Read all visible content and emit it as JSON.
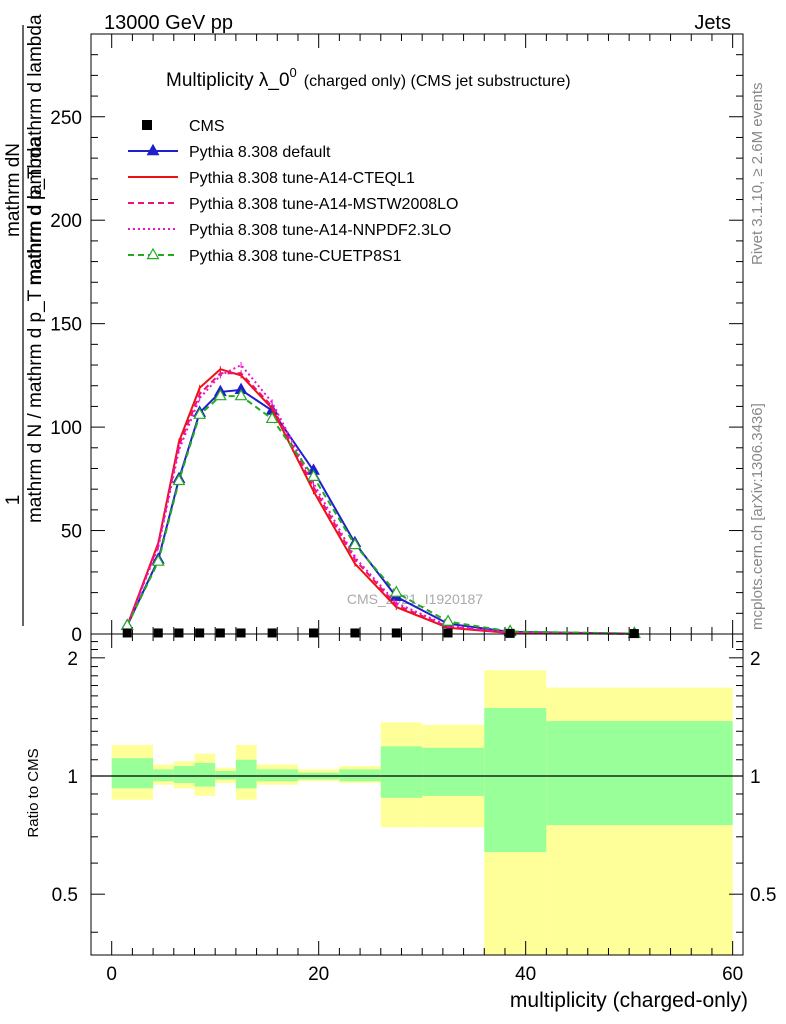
{
  "header": {
    "left": "13000 GeV pp",
    "right": "Jets"
  },
  "side": {
    "rivet": "Rivet 3.1.10, ≥ 2.6M events",
    "mcplots": "mcplots.cern.ch [arXiv:1306.3436]"
  },
  "chart_data": [
    {
      "type": "line",
      "title": "Multiplicity λ_0",
      "title_superscript": "0",
      "subtitle": "(charged only) (CMS jet substructure)",
      "watermark": "CMS_2021_I1920187",
      "ylabel_numerator": "mathrm dN",
      "ylabel_denominator": "mathrm d p_T mathrm d lambda",
      "ylabel_prefactor_numerator": "1",
      "ylabel_prefactor_denominator": "mathrm d N / mathrm d p_T mathrm d lambda",
      "xlim": [
        -2,
        61
      ],
      "ylim": [
        0,
        290
      ],
      "yticks": [
        0,
        50,
        100,
        150,
        200,
        250
      ],
      "ytick_labels": [
        "0",
        "50",
        "100",
        "150",
        "200",
        "250"
      ],
      "cms": {
        "name": "CMS",
        "x": [
          1.5,
          4.5,
          6.5,
          8.5,
          10.5,
          12.5,
          15.5,
          19.5,
          23.5,
          27.5,
          32.5,
          38.5,
          50.5
        ],
        "y": [
          0.5,
          0.5,
          0.5,
          0.5,
          0.5,
          0.5,
          0.5,
          0.5,
          0.5,
          0.5,
          0.5,
          0.3,
          0.2
        ]
      },
      "x": [
        1.5,
        4.5,
        6.5,
        8.5,
        10.5,
        12.5,
        15.5,
        19.5,
        23.5,
        27.5,
        32.5,
        38.5,
        50.5
      ],
      "series": [
        {
          "name": "Pythia 8.308 default",
          "color": "#1f1fcc",
          "dash": "solid",
          "marker": "triangle-filled",
          "values": [
            4,
            36,
            75,
            107,
            117,
            118,
            108,
            79,
            44,
            18,
            5,
            1,
            0.2
          ]
        },
        {
          "name": "Pythia 8.308 tune-A14-CTEQL1",
          "color": "#ee1111",
          "dash": "solid",
          "marker": "none",
          "values": [
            4,
            44,
            93,
            119,
            128,
            125,
            109,
            69,
            34,
            13,
            3,
            0.5,
            0.1
          ]
        },
        {
          "name": "Pythia 8.308 tune-A14-MSTW2008LO",
          "color": "#ee1177",
          "dash": "dashed",
          "marker": "none",
          "values": [
            4,
            43,
            91,
            116,
            126,
            126,
            110,
            71,
            36,
            14,
            3.5,
            0.6,
            0.1
          ]
        },
        {
          "name": "Pythia 8.308 tune-A14-NNPDF2.3LO",
          "color": "#ee11cc",
          "dash": "dotted",
          "marker": "none",
          "values": [
            4,
            42,
            89,
            114,
            125,
            130,
            112,
            73,
            37,
            15,
            4,
            0.7,
            0.1
          ]
        },
        {
          "name": "Pythia 8.308 tune-CUETP8S1",
          "color": "#22aa22",
          "dash": "dashed",
          "marker": "triangle-open",
          "values": [
            4,
            35,
            74,
            106,
            115,
            115,
            104,
            76,
            43,
            20,
            6,
            1.2,
            0.2
          ]
        }
      ],
      "legend_location": "top-left"
    },
    {
      "type": "area",
      "ylabel": "Ratio to CMS",
      "xlabel": "multiplicity (charged-only)",
      "xlim": [
        -2,
        61
      ],
      "ylim": [
        0.35,
        2.3
      ],
      "xticks": [
        0,
        20,
        40,
        60
      ],
      "xtick_labels": [
        "0",
        "20",
        "40",
        "60"
      ],
      "yticks": [
        0.5,
        1,
        2
      ],
      "ytick_labels": [
        "0.5",
        "1",
        "2"
      ],
      "reference_line": 1,
      "band_colors": {
        "total": "#ffff99",
        "stat": "#99ff99"
      },
      "bins": [
        {
          "x0": 0,
          "x1": 4,
          "total": [
            0.87,
            1.2
          ],
          "stat": [
            0.93,
            1.11
          ]
        },
        {
          "x0": 4,
          "x1": 6,
          "total": [
            0.95,
            1.07
          ],
          "stat": [
            0.97,
            1.04
          ]
        },
        {
          "x0": 6,
          "x1": 8,
          "total": [
            0.93,
            1.09
          ],
          "stat": [
            0.96,
            1.06
          ]
        },
        {
          "x0": 8,
          "x1": 10,
          "total": [
            0.89,
            1.14
          ],
          "stat": [
            0.94,
            1.08
          ]
        },
        {
          "x0": 10,
          "x1": 12,
          "total": [
            0.96,
            1.05
          ],
          "stat": [
            0.98,
            1.03
          ]
        },
        {
          "x0": 12,
          "x1": 14,
          "total": [
            0.87,
            1.2
          ],
          "stat": [
            0.93,
            1.1
          ]
        },
        {
          "x0": 14,
          "x1": 18,
          "total": [
            0.95,
            1.07
          ],
          "stat": [
            0.97,
            1.04
          ]
        },
        {
          "x0": 18,
          "x1": 22,
          "total": [
            0.97,
            1.04
          ],
          "stat": [
            0.98,
            1.02
          ]
        },
        {
          "x0": 22,
          "x1": 26,
          "total": [
            0.96,
            1.06
          ],
          "stat": [
            0.97,
            1.04
          ]
        },
        {
          "x0": 26,
          "x1": 30,
          "total": [
            0.74,
            1.37
          ],
          "stat": [
            0.88,
            1.19
          ]
        },
        {
          "x0": 30,
          "x1": 36,
          "total": [
            0.74,
            1.35
          ],
          "stat": [
            0.89,
            1.18
          ]
        },
        {
          "x0": 36,
          "x1": 42,
          "total": [
            0.35,
            1.86
          ],
          "stat": [
            0.64,
            1.49
          ]
        },
        {
          "x0": 42,
          "x1": 60,
          "total": [
            0.35,
            1.68
          ],
          "stat": [
            0.75,
            1.38
          ]
        }
      ]
    }
  ]
}
